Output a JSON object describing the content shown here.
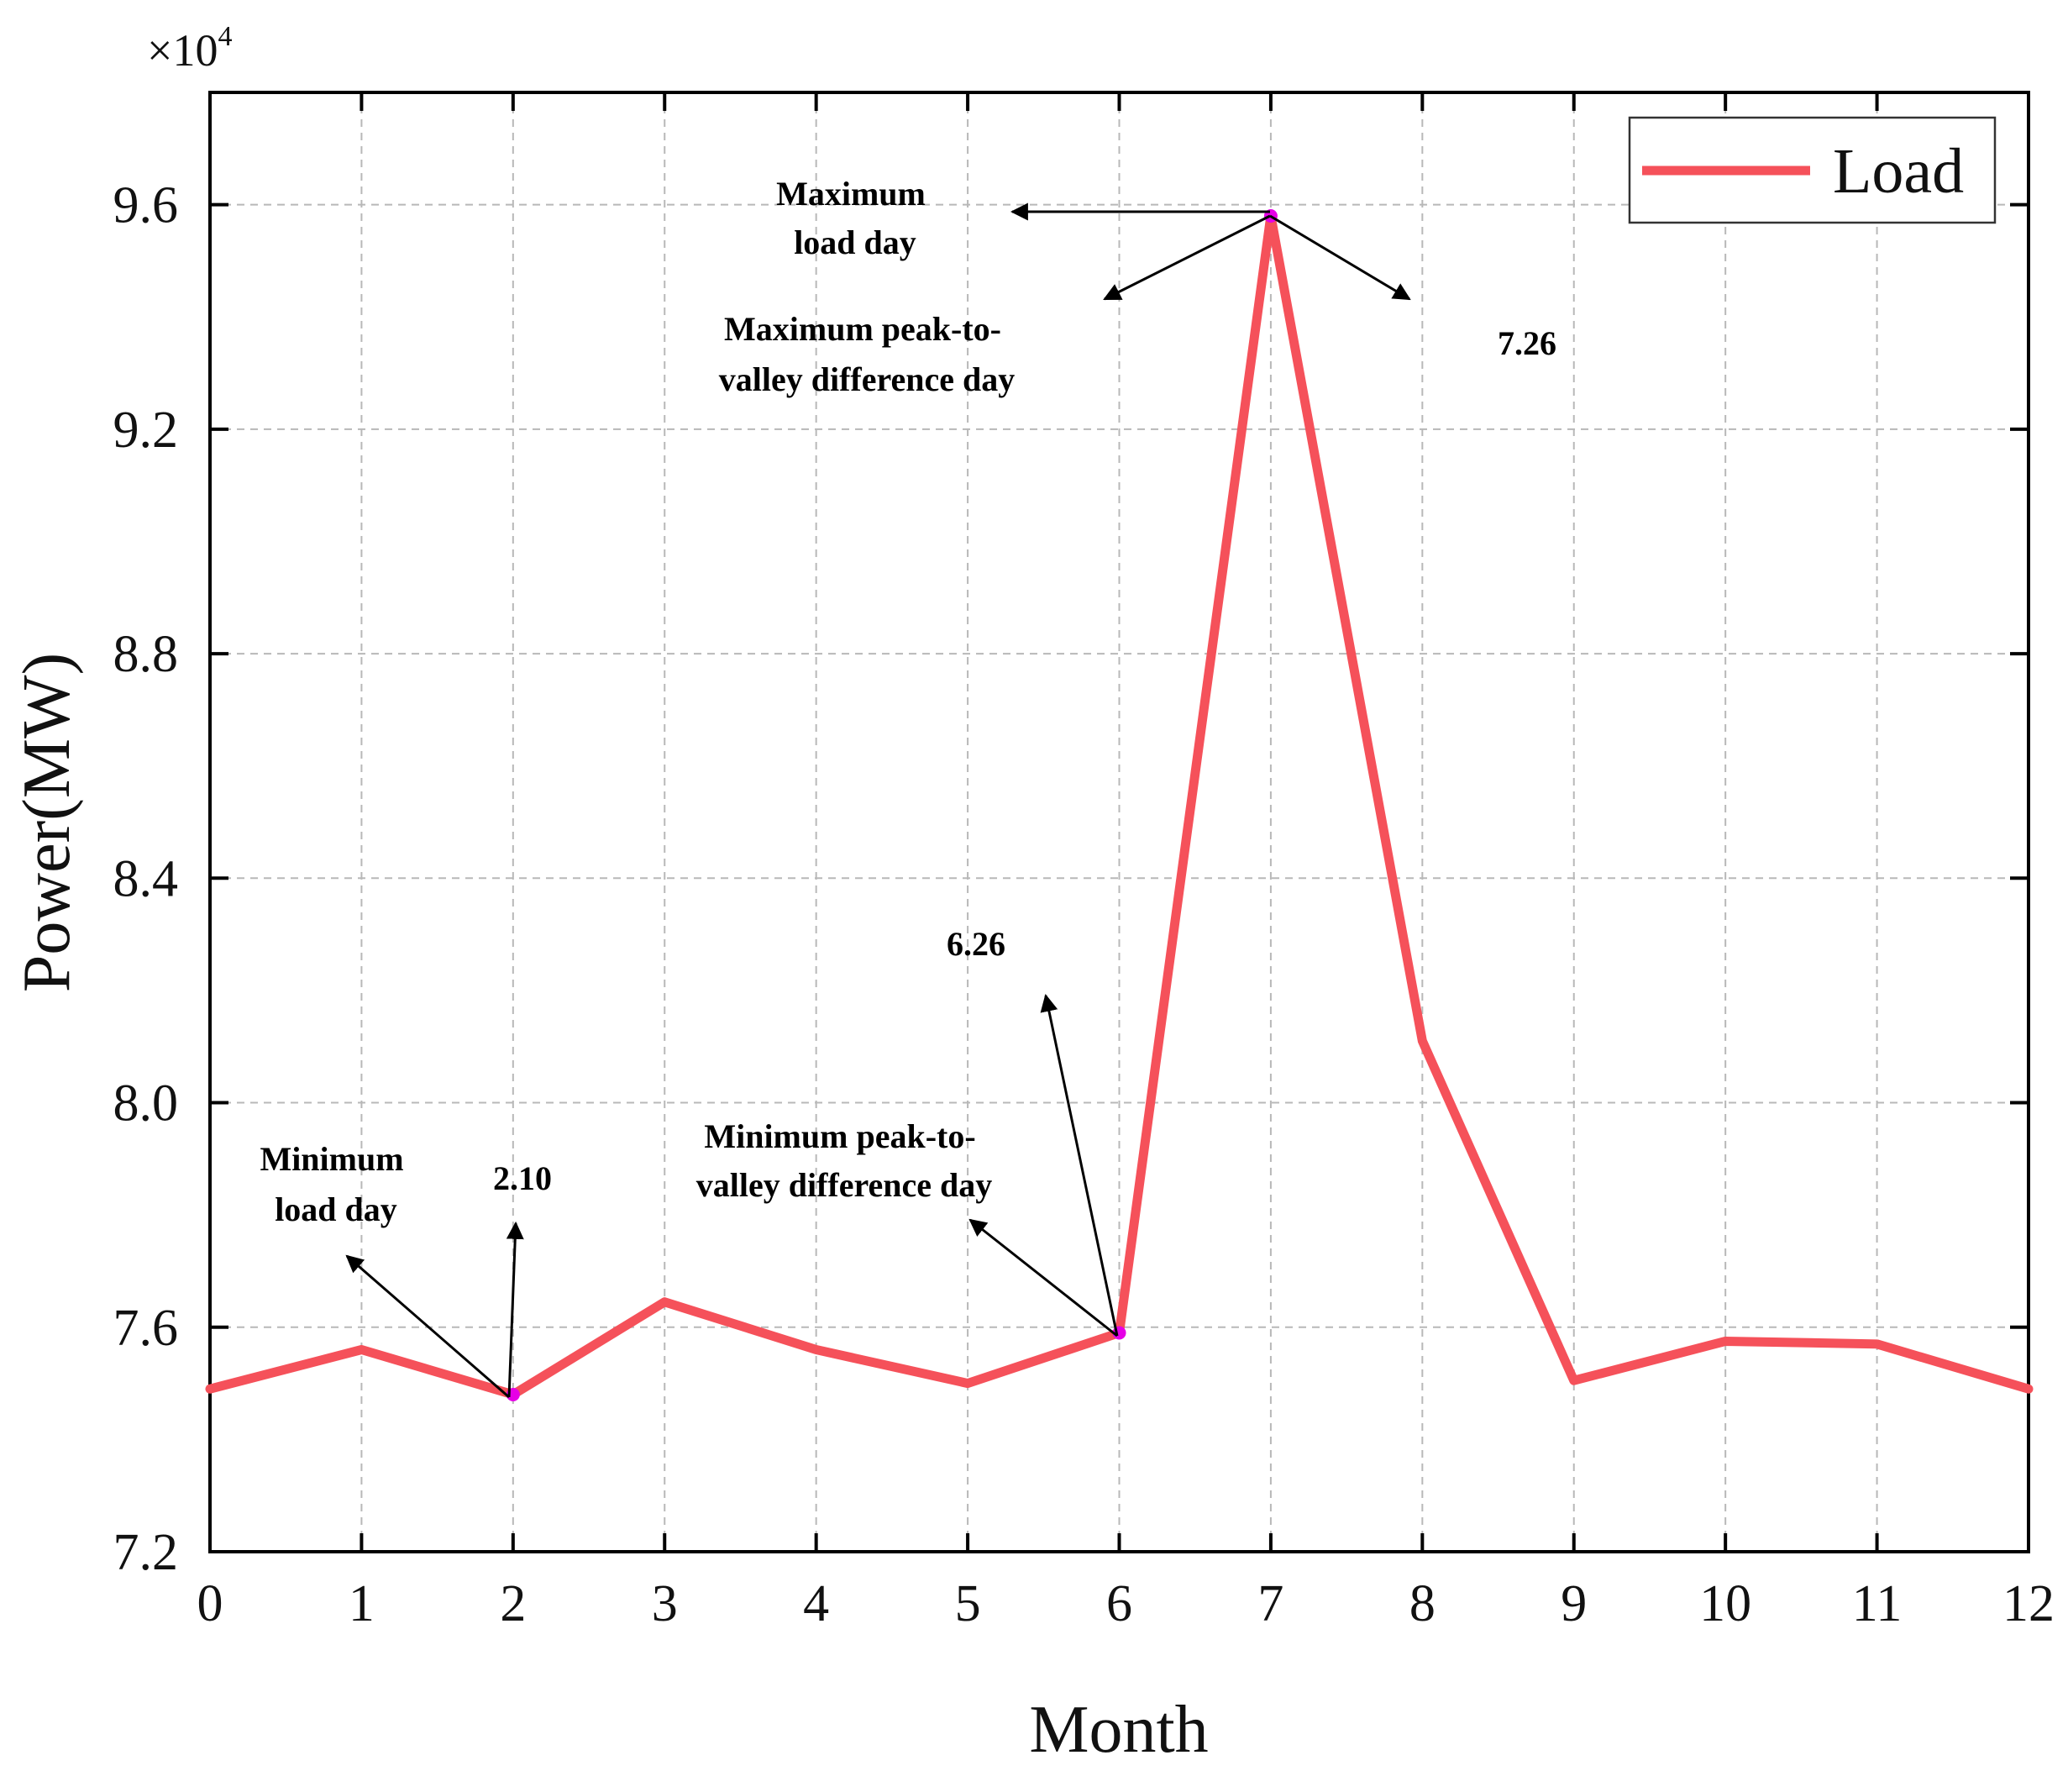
{
  "chart_data": {
    "type": "line",
    "title": "",
    "xlabel": "Month",
    "ylabel": "Power(MW)",
    "y_multiplier_label": "×10",
    "y_multiplier_exponent": "4",
    "xlim": [
      0,
      12
    ],
    "ylim": [
      7.2,
      9.8
    ],
    "x_ticks": [
      0,
      1,
      2,
      3,
      4,
      5,
      6,
      7,
      8,
      9,
      10,
      11,
      12
    ],
    "x_tick_labels": [
      "0",
      "1",
      "2",
      "3",
      "4",
      "5",
      "6",
      "7",
      "8",
      "9",
      "10",
      "11",
      "12"
    ],
    "y_ticks": [
      7.2,
      7.6,
      8.0,
      8.4,
      8.8,
      9.2,
      9.6
    ],
    "y_tick_labels": [
      "7.2",
      "7.6",
      "8.0",
      "8.4",
      "8.8",
      "9.2",
      "9.6"
    ],
    "grid": true,
    "legend_position": "top-right",
    "series": [
      {
        "name": "Load",
        "color": "#f5515a",
        "x": [
          0,
          1,
          2,
          3,
          4,
          5,
          6,
          7,
          8,
          9,
          10,
          11,
          12
        ],
        "values": [
          7.49,
          7.56,
          7.48,
          7.645,
          7.56,
          7.5,
          7.59,
          9.58,
          8.11,
          7.505,
          7.575,
          7.57,
          7.49
        ]
      }
    ],
    "highlight_points": [
      {
        "x": 2,
        "y": 7.48,
        "color": "#e600e6"
      },
      {
        "x": 6,
        "y": 7.59,
        "color": "#e600e6"
      },
      {
        "x": 7,
        "y": 9.58,
        "color": "#e600e6"
      }
    ],
    "annotations": [
      {
        "lines": [
          "Maximum",
          "load day"
        ]
      },
      {
        "lines": [
          "Maximum peak-to-",
          "valley difference day"
        ]
      },
      {
        "lines": [
          "7.26"
        ]
      },
      {
        "lines": [
          "6.26"
        ]
      },
      {
        "lines": [
          "Minimum peak-to-",
          "valley difference day"
        ]
      },
      {
        "lines": [
          "Minimum",
          "load day"
        ]
      },
      {
        "lines": [
          "2.10"
        ]
      }
    ]
  }
}
